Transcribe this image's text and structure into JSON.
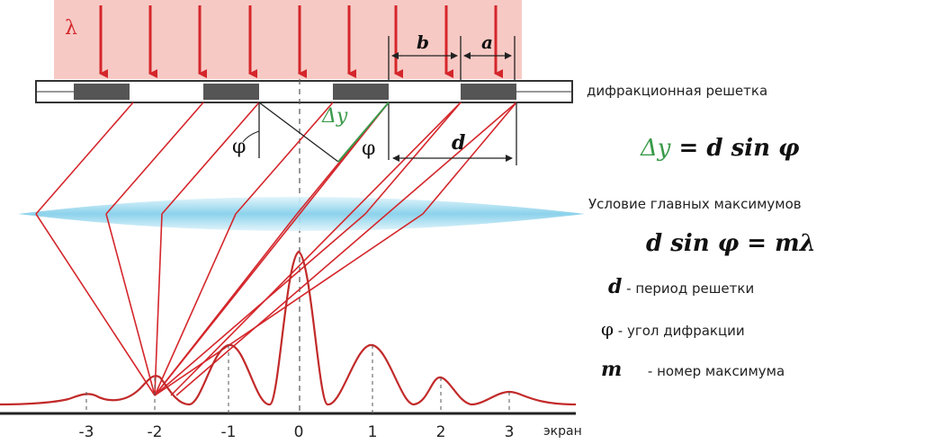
{
  "labels": {
    "lambda": "λ",
    "b": "b",
    "a": "a",
    "d_top": "d",
    "delta_y": "Δy",
    "phi_left": "φ",
    "phi_right": "φ",
    "screen": "экран"
  },
  "screen_ticks": [
    "-3",
    "-2",
    "-1",
    "0",
    "1",
    "2",
    "3"
  ],
  "side_text": {
    "grating": "дифракционная решетка",
    "path_diff_formula": {
      "lhs": "Δy",
      "eq": " = ",
      "rhs": "d sin φ"
    },
    "maxima_condition_title": "Условие главных максимумов",
    "maxima_formula": "d sin φ = mλ",
    "legend": [
      {
        "symbol": "d",
        "text": " - период решетки"
      },
      {
        "symbol": "φ",
        "text": " - угол дифракции"
      },
      {
        "symbol": "m",
        "text": "      - номер максимума"
      }
    ]
  },
  "colors": {
    "ray": "#d4262b",
    "light_fill": "#f7c9c4",
    "grating_bar": "#555555",
    "lens": "#8fd6ee",
    "delta_y_green": "#3a9a4a",
    "curve": "#c22a2a",
    "axis": "#222222"
  }
}
